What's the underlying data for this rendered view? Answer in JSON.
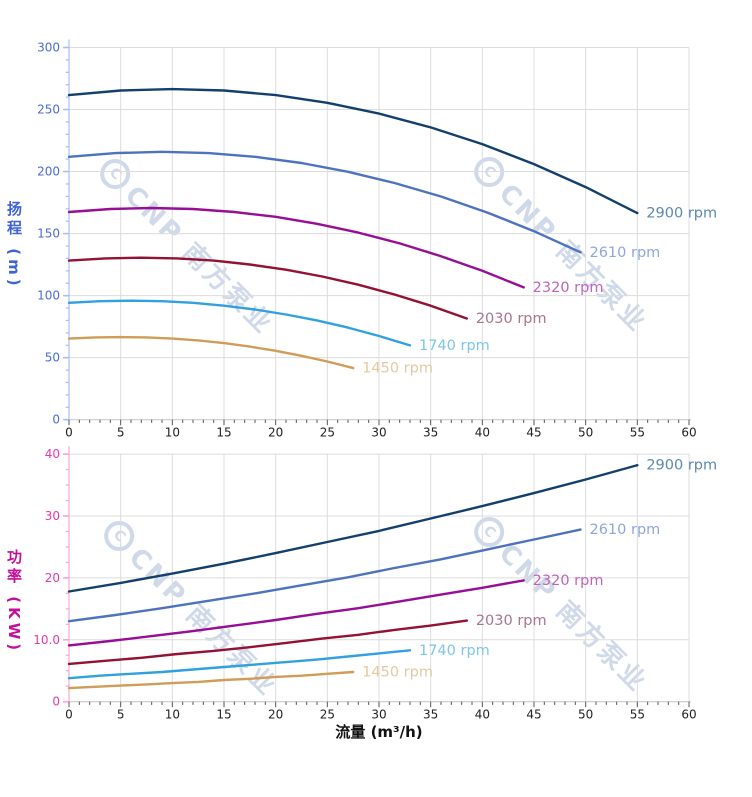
{
  "watermark": {
    "logo": "C",
    "text": "CNP 南方泵业"
  },
  "chart_data": {
    "type": "line",
    "x_axis": {
      "title": "流量 (m³/h)",
      "min": 0,
      "max": 60,
      "major_step": 5,
      "minor_step": 1,
      "tick_labels": [
        "0",
        "5",
        "10",
        "15",
        "20",
        "25",
        "30",
        "35",
        "40",
        "45",
        "50",
        "55",
        "60"
      ]
    },
    "charts": [
      {
        "id": "head",
        "y_axis": {
          "title": "扬程 (m)",
          "min": 0,
          "max": 300,
          "major_step": 50,
          "minor_step": 10,
          "tick_labels": [
            "0",
            "50",
            "100",
            "150",
            "200",
            "250",
            "300"
          ],
          "label_color": "#4a6cd9",
          "title_color": "#3f63d6",
          "tick_color": "#a9bdf2"
        },
        "series": [
          {
            "name": "2900 rpm",
            "color": "#123f6d",
            "label_color": "#5b88b0",
            "x": [
              0,
              5,
              10,
              15,
              20,
              25,
              30,
              35,
              40,
              45,
              50,
              55
            ],
            "y": [
              261.6,
              265.3,
              266.5,
              265.3,
              261.6,
              255.4,
              246.7,
              235.6,
              222.1,
              206.0,
              187.5,
              166.5
            ]
          },
          {
            "name": "2610 rpm",
            "color": "#4d73bf",
            "label_color": "#8ea6dc",
            "x": [
              0,
              4.5,
              9,
              13.5,
              18,
              22.5,
              27,
              31.5,
              36,
              40.5,
              45,
              49.5
            ],
            "y": [
              211.9,
              214.9,
              215.9,
              214.9,
              211.9,
              206.9,
              199.8,
              190.8,
              179.9,
              166.9,
              151.9,
              134.9
            ]
          },
          {
            "name": "2320 rpm",
            "color": "#970e95",
            "label_color": "#bf63bd",
            "x": [
              0,
              4,
              8,
              12,
              16,
              20,
              24,
              28,
              32,
              36,
              40,
              44
            ],
            "y": [
              167.4,
              169.8,
              170.6,
              169.8,
              167.4,
              163.5,
              157.9,
              150.8,
              142.1,
              131.8,
              120.0,
              106.6
            ]
          },
          {
            "name": "2030 rpm",
            "color": "#931133",
            "label_color": "#a8758c",
            "x": [
              0,
              3.5,
              7,
              10.5,
              14,
              17.5,
              21,
              24.5,
              28,
              31.5,
              35,
              38.5
            ],
            "y": [
              128.2,
              130.0,
              130.6,
              130.0,
              128.2,
              125.1,
              120.9,
              115.4,
              108.8,
              100.9,
              91.9,
              81.6
            ]
          },
          {
            "name": "1740 rpm",
            "color": "#30a1de",
            "label_color": "#7cc5eb",
            "x": [
              0,
              3,
              6,
              9,
              12,
              15,
              18,
              21,
              24,
              27,
              30,
              33
            ],
            "y": [
              94.2,
              95.5,
              95.9,
              95.5,
              94.2,
              91.9,
              88.8,
              84.8,
              80.0,
              74.2,
              67.5,
              59.9
            ]
          },
          {
            "name": "1450 rpm",
            "color": "#d09c58",
            "label_color": "#e5c9a0",
            "x": [
              0,
              2.5,
              5,
              7.5,
              10,
              12.5,
              15,
              17.5,
              20,
              22.5,
              25,
              27.5
            ],
            "y": [
              65.4,
              66.3,
              66.6,
              66.3,
              65.4,
              63.9,
              61.7,
              58.9,
              55.5,
              51.5,
              46.9,
              41.6
            ]
          }
        ]
      },
      {
        "id": "power",
        "y_axis": {
          "title": "功率 (KW)",
          "min": 0,
          "max": 40,
          "major_step": 10,
          "minor_step": 2.5,
          "tick_labels": [
            "0",
            "10.0",
            "20",
            "30",
            "40"
          ],
          "label_color": "#e838ad",
          "title_color": "#c40f9a",
          "tick_color": "#f2a9d6"
        },
        "series": [
          {
            "name": "2900 rpm",
            "color": "#123f6d",
            "label_color": "#5b88b0",
            "x": [
              0,
              5,
              10,
              15,
              20,
              25,
              30,
              35,
              40,
              45,
              50,
              55
            ],
            "y": [
              17.8,
              19.2,
              20.7,
              22.3,
              24.0,
              25.8,
              27.6,
              29.6,
              31.6,
              33.7,
              35.9,
              38.2
            ]
          },
          {
            "name": "2610 rpm",
            "color": "#4d73bf",
            "label_color": "#8ea6dc",
            "x": [
              0,
              4.5,
              9,
              13.5,
              18,
              22.5,
              27,
              31.5,
              36,
              40.5,
              45,
              49.5
            ],
            "y": [
              13.0,
              14.0,
              15.1,
              16.3,
              17.5,
              18.8,
              20.1,
              21.6,
              23.0,
              24.6,
              26.2,
              27.8
            ]
          },
          {
            "name": "2320 rpm",
            "color": "#970e95",
            "label_color": "#bf63bd",
            "x": [
              0,
              4,
              8,
              12,
              16,
              20,
              24,
              28,
              32,
              36,
              40,
              44
            ],
            "y": [
              9.1,
              9.8,
              10.6,
              11.4,
              12.3,
              13.2,
              14.2,
              15.1,
              16.2,
              17.3,
              18.4,
              19.6
            ]
          },
          {
            "name": "2030 rpm",
            "color": "#931133",
            "label_color": "#a8758c",
            "x": [
              0,
              3.5,
              7,
              10.5,
              14,
              17.5,
              21,
              24.5,
              28,
              31.5,
              35,
              38.5
            ],
            "y": [
              6.1,
              6.6,
              7.1,
              7.7,
              8.2,
              8.8,
              9.5,
              10.2,
              10.8,
              11.6,
              12.3,
              13.1
            ]
          },
          {
            "name": "1740 rpm",
            "color": "#30a1de",
            "label_color": "#7cc5eb",
            "x": [
              0,
              3,
              6,
              9,
              12,
              15,
              18,
              21,
              24,
              27,
              30,
              33
            ],
            "y": [
              3.8,
              4.2,
              4.5,
              4.8,
              5.2,
              5.6,
              6.0,
              6.4,
              6.8,
              7.3,
              7.8,
              8.3
            ]
          },
          {
            "name": "1450 rpm",
            "color": "#d09c58",
            "label_color": "#e5c9a0",
            "x": [
              0,
              2.5,
              5,
              7.5,
              10,
              12.5,
              15,
              17.5,
              20,
              22.5,
              25,
              27.5
            ],
            "y": [
              2.2,
              2.4,
              2.6,
              2.8,
              3.0,
              3.2,
              3.5,
              3.7,
              4.0,
              4.2,
              4.5,
              4.8
            ]
          }
        ]
      }
    ]
  }
}
